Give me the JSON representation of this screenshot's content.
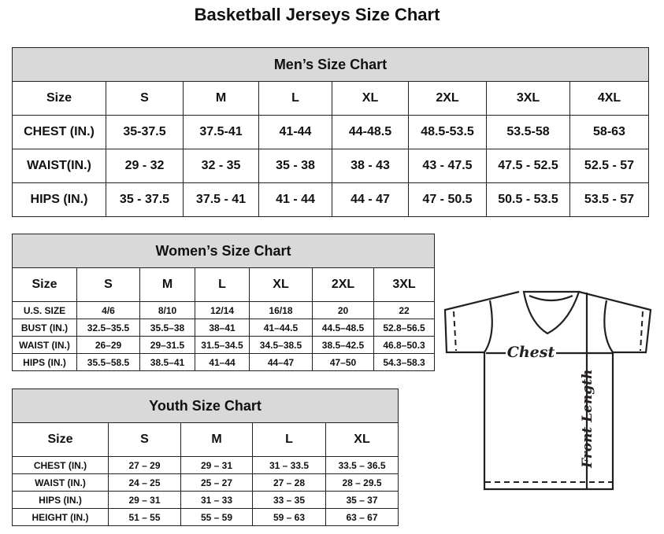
{
  "title": "Basketball Jerseys Size Chart",
  "mens": {
    "heading": "Men’s Size Chart",
    "rows": [
      [
        "Size",
        "S",
        "M",
        "L",
        "XL",
        "2XL",
        "3XL",
        "4XL"
      ],
      [
        "CHEST (IN.)",
        "35-37.5",
        "37.5-41",
        "41-44",
        "44-48.5",
        "48.5-53.5",
        "53.5-58",
        "58-63"
      ],
      [
        "WAIST(IN.)",
        "29 - 32",
        "32 - 35",
        "35 - 38",
        "38 - 43",
        "43 - 47.5",
        "47.5 - 52.5",
        "52.5 - 57"
      ],
      [
        "HIPS (IN.)",
        "35 - 37.5",
        "37.5 - 41",
        "41 - 44",
        "44 - 47",
        "47 - 50.5",
        "50.5 - 53.5",
        "53.5 - 57"
      ]
    ]
  },
  "womens": {
    "heading": "Women’s Size Chart",
    "rows": [
      [
        "Size",
        "S",
        "M",
        "L",
        "XL",
        "2XL",
        "3XL"
      ],
      [
        "U.S.  SIZE",
        "4/6",
        "8/10",
        "12/14",
        "16/18",
        "20",
        "22"
      ],
      [
        "BUST  (IN.)",
        "32.5–35.5",
        "35.5–38",
        "38–41",
        "41–44.5",
        "44.5–48.5",
        "52.8–56.5"
      ],
      [
        "WAIST  (IN.)",
        "26–29",
        "29–31.5",
        "31.5–34.5",
        "34.5–38.5",
        "38.5–42.5",
        "46.8–50.3"
      ],
      [
        "HIPS  (IN.)",
        "35.5–58.5",
        "38.5–41",
        "41–44",
        "44–47",
        "47–50",
        "54.3–58.3"
      ]
    ]
  },
  "youth": {
    "heading": "Youth Size Chart",
    "rows": [
      [
        "Size",
        "S",
        "M",
        "L",
        "XL"
      ],
      [
        "CHEST  (IN.)",
        "27  –  29",
        "29  –  31",
        "31  –  33.5",
        "33.5  –  36.5"
      ],
      [
        "WAIST  (IN.)",
        "24  –  25",
        "25  –  27",
        "27  –  28",
        "28  –  29.5"
      ],
      [
        "HIPS  (IN.)",
        "29  –  31",
        "31  –  33",
        "33  –  35",
        "35  –  37"
      ],
      [
        "HEIGHT  (IN.)",
        "51  –  55",
        "55  –  59",
        "59  –  63",
        "63  –  67"
      ]
    ]
  },
  "diagram": {
    "chest_label": "Chest",
    "length_label": "Front Length"
  },
  "colors": {
    "header_bg": "#d9d9d9",
    "line": "#231f20"
  }
}
